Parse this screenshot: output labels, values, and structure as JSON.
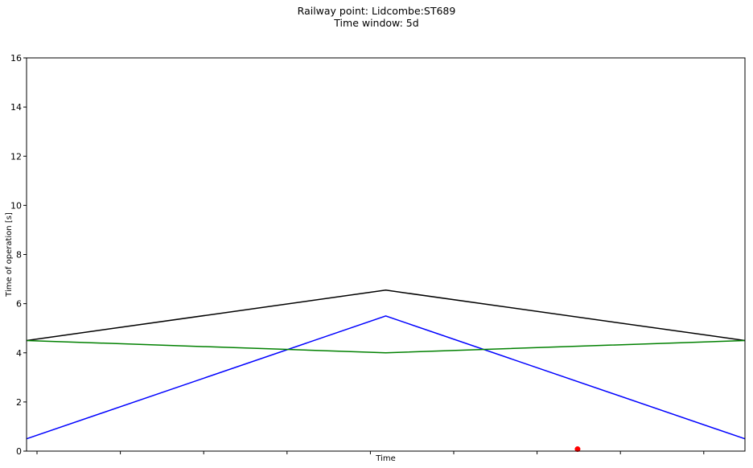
{
  "titles": {
    "line1": "Railway point: Lidcombe:ST689",
    "line2": "Time window: 5d"
  },
  "chart_data": {
    "type": "line",
    "title": "Railway point: Lidcombe:ST689\nTime window: 5d",
    "xlabel": "Time",
    "ylabel": "Time of operation [s]",
    "ylim": [
      0,
      16
    ],
    "yticks": [
      0,
      2,
      4,
      6,
      8,
      10,
      12,
      14,
      16
    ],
    "xlim": [
      0,
      1
    ],
    "x_tick_count": 9,
    "x_tick_labels_visible": false,
    "grid": false,
    "legend": "none",
    "series": [
      {
        "color": "#000000",
        "x": [
          0,
          0.5,
          1
        ],
        "y": [
          4.5,
          6.55,
          4.5
        ]
      },
      {
        "color": "#0000ff",
        "x": [
          0,
          0.5,
          1
        ],
        "y": [
          0.5,
          5.5,
          0.5
        ]
      },
      {
        "color": "#008000",
        "x": [
          0,
          0.5,
          1
        ],
        "y": [
          4.5,
          4.0,
          4.5
        ]
      }
    ],
    "markers": [
      {
        "color": "#ff0000",
        "x": 0.767,
        "y": 0.08
      }
    ]
  }
}
